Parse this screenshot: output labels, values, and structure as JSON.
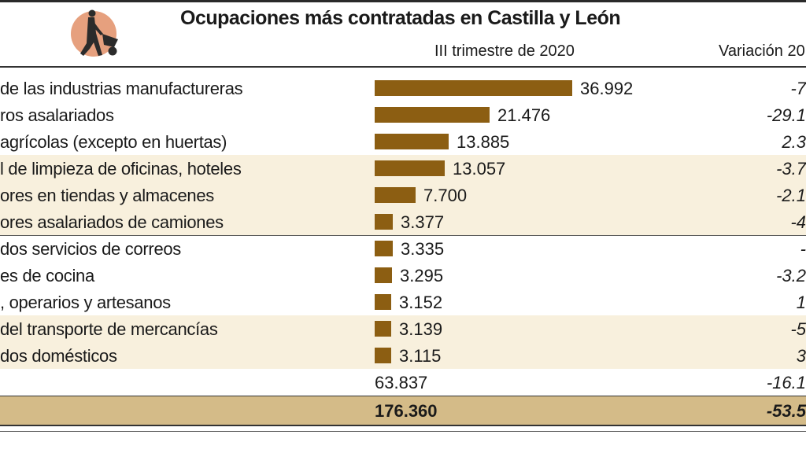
{
  "title": "Ocupaciones más contratadas en Castilla y León",
  "columns": {
    "period": "III trimestre de 2020",
    "variation": "Variación 20"
  },
  "chart_data": {
    "type": "bar",
    "orientation": "horizontal",
    "title": "Ocupaciones más contratadas en Castilla y León",
    "categories": [
      "de las industrias manufactureras",
      "ros asalariados",
      "agrícolas (excepto en huertas)",
      "l de limpieza de oficinas, hoteles",
      "ores en tiendas y almacenes",
      "ores asalariados de camiones",
      "dos servicios de correos",
      "es de cocina",
      ", operarios y artesanos",
      "del transporte de mercancías",
      "dos domésticos"
    ],
    "values": [
      36992,
      21476,
      13885,
      13057,
      7700,
      3377,
      3335,
      3295,
      3152,
      3139,
      3115
    ],
    "value_labels": [
      "36.992",
      "21.476",
      "13.885",
      "13.057",
      "7.700",
      "3.377",
      "3.335",
      "3.295",
      "3.152",
      "3.139",
      "3.115"
    ],
    "variation_labels": [
      "-7",
      "-29.1",
      "2.3",
      "-3.7",
      "-2.1",
      "-4",
      "-",
      "-3.2",
      "1",
      "-5",
      "3"
    ],
    "other": {
      "value_label": "63.837",
      "variation_label": "-16.1"
    },
    "total": {
      "value_label": "176.360",
      "variation_label": "-53.5"
    },
    "bar_color": "#8c5e12",
    "band_color": "#f8f0dd",
    "total_color": "#d4bb88"
  }
}
